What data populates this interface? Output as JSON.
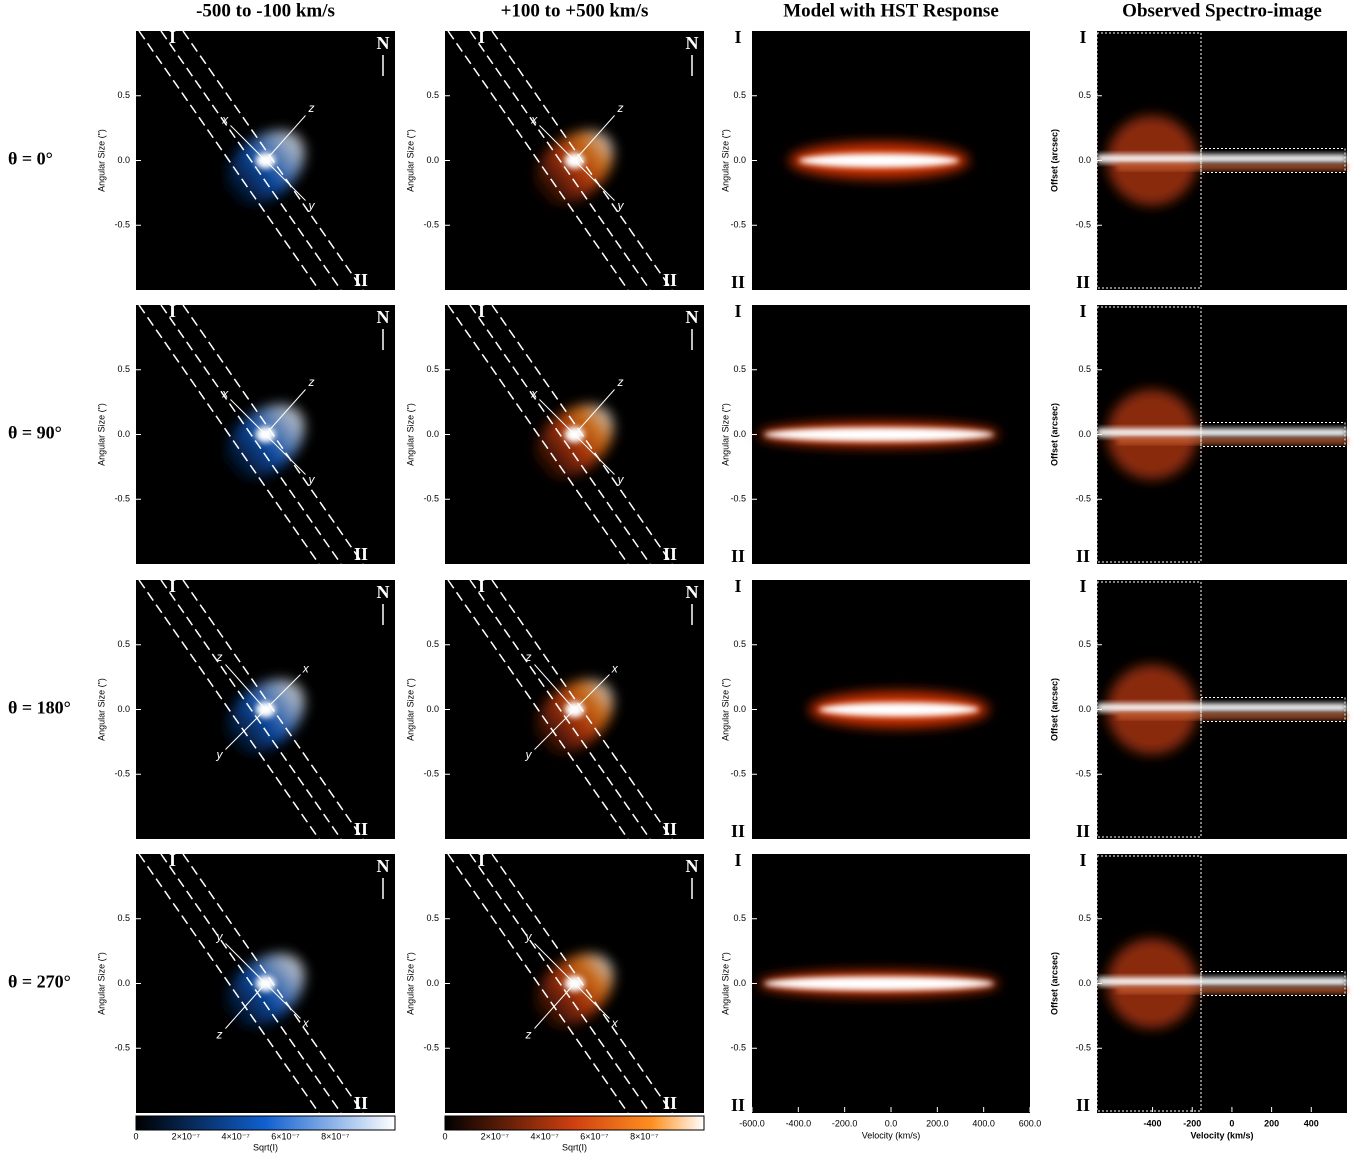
{
  "column_titles": [
    "-500 to -100 km/s",
    "+100 to +500 km/s",
    "Model with HST Response",
    "Observed Spectro-image"
  ],
  "row_labels": [
    "θ = 0°",
    "θ = 90°",
    "θ = 180°",
    "θ = 270°"
  ],
  "image_axis": {
    "label": "Angular Size (\")",
    "ticks": [
      "0.5",
      "0.0",
      "-0.5"
    ]
  },
  "spectro_axis": {
    "label": "Offset (arcsec)",
    "ticks": [
      "0.5",
      "0.0",
      "-0.5"
    ]
  },
  "slit_labels": [
    "I",
    "II"
  ],
  "compass": "N",
  "axis_letters": [
    "x",
    "y",
    "z"
  ],
  "model_xaxis": {
    "label": "Velocity (km/s)",
    "ticks": [
      "-600.0",
      "-400.0",
      "-200.0",
      "0.0",
      "200.0",
      "400.0",
      "600.0"
    ]
  },
  "observed_xaxis": {
    "label": "Velocity (km/s)",
    "ticks": [
      "-400",
      "-200",
      "0",
      "200",
      "400"
    ]
  },
  "colorbars": [
    {
      "label": "Sqrt(I)",
      "ticks": [
        "0",
        "2×10⁻⁷",
        "4×10⁻⁷",
        "6×10⁻⁷",
        "8×10⁻⁷"
      ]
    },
    {
      "label": "Sqrt(I)",
      "ticks": [
        "0",
        "2×10⁻⁷",
        "4×10⁻⁷",
        "6×10⁻⁷",
        "8×10⁻⁷"
      ]
    }
  ]
}
